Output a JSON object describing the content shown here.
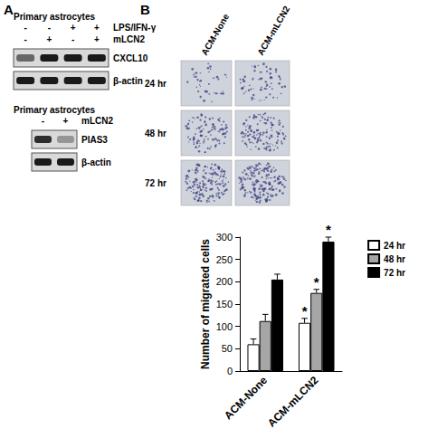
{
  "panels": {
    "A": {
      "label": "A",
      "gels": [
        {
          "title": "Primary astrocytes",
          "conditions": [
            {
              "name": "LPS/IFN-γ",
              "lanes": [
                "-",
                "-",
                "+",
                "+"
              ]
            },
            {
              "name": "mLCN2",
              "lanes": [
                "-",
                "+",
                "-",
                "+"
              ]
            }
          ],
          "bands": [
            {
              "name": "CXCL10",
              "intensity": [
                0.6,
                1,
                1,
                1
              ]
            },
            {
              "name": "β-actin",
              "intensity": [
                1,
                1,
                1,
                1
              ]
            }
          ]
        },
        {
          "title": "Primary astrocytes",
          "conditions": [
            {
              "name": "mLCN2",
              "lanes": [
                "-",
                "+"
              ]
            }
          ],
          "bands": [
            {
              "name": "PIAS3",
              "intensity": [
                0.9,
                0.35
              ]
            },
            {
              "name": "β-actin",
              "intensity": [
                1,
                1
              ]
            }
          ]
        }
      ]
    },
    "B": {
      "label": "B",
      "columns": [
        "ACM-None",
        "ACM-mLCN2"
      ],
      "rows": [
        "24 hr",
        "48 hr",
        "72 hr"
      ]
    }
  },
  "chart_data": {
    "type": "bar",
    "categories": [
      "ACM-None",
      "ACM-mLCN2"
    ],
    "series": [
      {
        "name": "24 hr",
        "color": "#ffffff",
        "values": [
          60,
          108
        ],
        "errors": [
          12,
          10
        ],
        "annotations": [
          null,
          "*"
        ]
      },
      {
        "name": "48 hr",
        "color": "#a6a6a6",
        "values": [
          112,
          175
        ],
        "errors": [
          15,
          8
        ],
        "annotations": [
          null,
          "*"
        ]
      },
      {
        "name": "72 hr",
        "color": "#000000",
        "values": [
          205,
          290
        ],
        "errors": [
          12,
          10
        ],
        "annotations": [
          null,
          "*"
        ]
      }
    ],
    "ylabel": "Number of migrated cells",
    "ylim": [
      0,
      300
    ],
    "yticks": [
      0,
      50,
      100,
      150,
      200,
      250,
      300
    ],
    "grid": false,
    "legend": "upper right"
  }
}
